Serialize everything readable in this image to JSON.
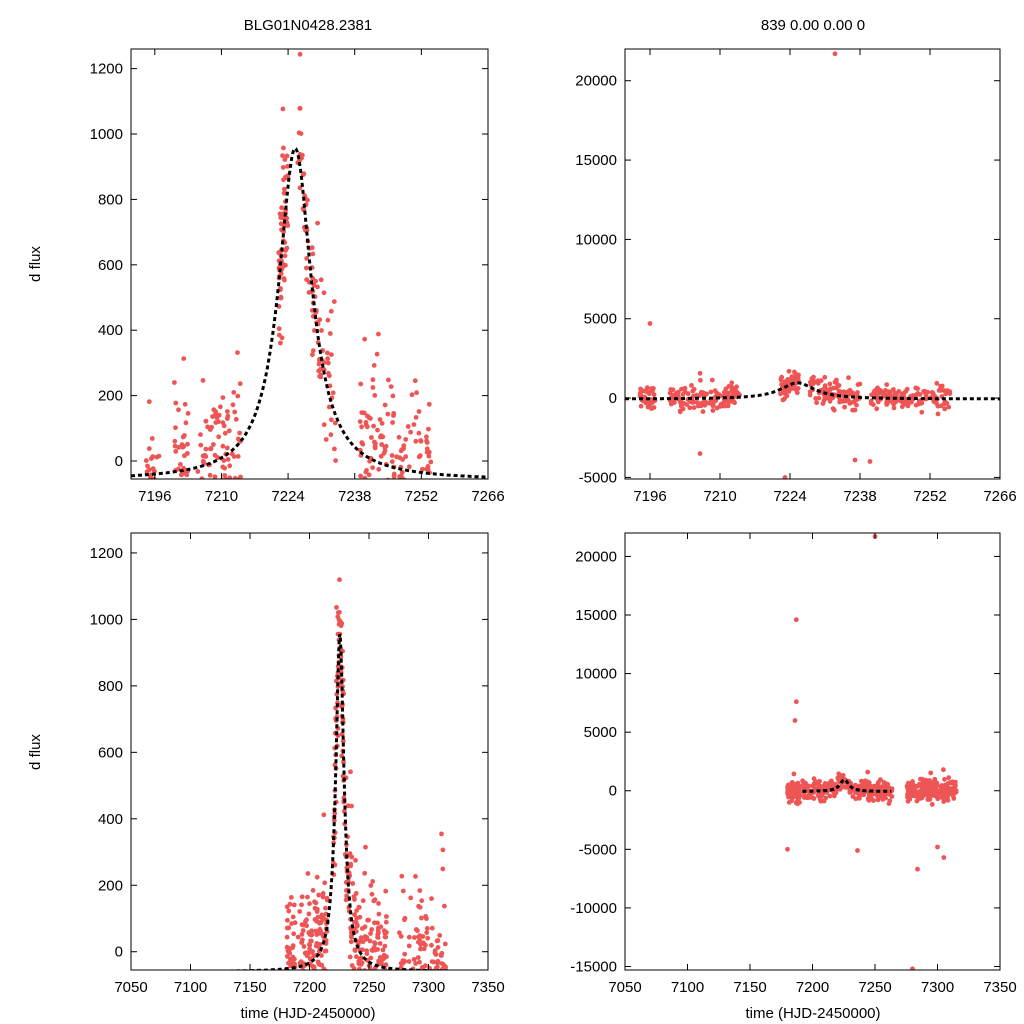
{
  "figure": {
    "title_left": "BLG01N0428.2381",
    "title_right": "839  0.00  0.00  0",
    "ylabel": "d flux",
    "xlabel": "time (HJD-2450000)"
  },
  "colors": {
    "points": "#ee5555",
    "model": "#000000",
    "frame": "#000000"
  },
  "chart_data": [
    {
      "id": "top-left",
      "type": "scatter",
      "xlim": [
        7191,
        7266
      ],
      "ylim": [
        -55,
        1260
      ],
      "xticks": [
        7196,
        7210,
        7224,
        7238,
        7252,
        7266
      ],
      "yticks": [
        0,
        200,
        400,
        600,
        800,
        1000,
        1200
      ],
      "model": {
        "t0": 7225.5,
        "peak": 956,
        "base": -60,
        "width": 4.2
      },
      "scatter": {
        "seed": 11,
        "noise": 140,
        "groups": [
          {
            "t": [
              7194,
              7197
            ],
            "n": 30
          },
          {
            "t": [
              7200,
              7203
            ],
            "n": 45
          },
          {
            "t": [
              7205,
              7208
            ],
            "n": 30
          },
          {
            "t": [
              7208,
              7214
            ],
            "n": 60
          },
          {
            "t": [
              7222,
              7224
            ],
            "n": 70
          },
          {
            "t": [
              7226,
              7234
            ],
            "n": 90
          },
          {
            "t": [
              7239,
              7245
            ],
            "n": 70
          },
          {
            "t": [
              7245,
              7254
            ],
            "n": 90
          }
        ]
      }
    },
    {
      "id": "top-right",
      "type": "scatter",
      "xlim": [
        7191,
        7266
      ],
      "ylim": [
        -5100,
        22000
      ],
      "xticks": [
        7196,
        7210,
        7224,
        7238,
        7252,
        7266
      ],
      "yticks": [
        -5000,
        0,
        5000,
        10000,
        15000,
        20000
      ],
      "model": {
        "t0": 7225.5,
        "peak": 956,
        "base": -60,
        "width": 4.2
      },
      "scatter": {
        "seed": 23,
        "noise": 500,
        "groups": [
          {
            "t": [
              7194,
              7197
            ],
            "n": 40
          },
          {
            "t": [
              7200,
              7214
            ],
            "n": 130
          },
          {
            "t": [
              7222,
              7226
            ],
            "n": 60
          },
          {
            "t": [
              7228,
              7238
            ],
            "n": 100
          },
          {
            "t": [
              7240,
              7256
            ],
            "n": 130
          }
        ]
      },
      "outliers": [
        [
          7196,
          4700
        ],
        [
          7233,
          21700
        ],
        [
          7206,
          -3500
        ],
        [
          7240,
          -4000
        ],
        [
          7237,
          -3900
        ],
        [
          7223,
          -5000
        ]
      ]
    },
    {
      "id": "bottom-left",
      "type": "scatter",
      "xlim": [
        7050,
        7350
      ],
      "ylim": [
        -55,
        1260
      ],
      "xticks": [
        7050,
        7100,
        7150,
        7200,
        7250,
        7300,
        7350
      ],
      "yticks": [
        0,
        200,
        400,
        600,
        800,
        1000,
        1200
      ],
      "model": {
        "t0": 7225.5,
        "peak": 956,
        "base": -60,
        "width": 4.2
      },
      "scatter": {
        "seed": 37,
        "noise": 140,
        "groups": [
          {
            "t": [
              7180,
              7188
            ],
            "n": 60
          },
          {
            "t": [
              7190,
              7215
            ],
            "n": 170
          },
          {
            "t": [
              7220,
              7232
            ],
            "n": 100
          },
          {
            "t": [
              7232,
              7265
            ],
            "n": 200
          },
          {
            "t": [
              7275,
              7315
            ],
            "n": 170
          }
        ]
      }
    },
    {
      "id": "bottom-right",
      "type": "scatter",
      "xlim": [
        7050,
        7350
      ],
      "ylim": [
        -15300,
        22000
      ],
      "xticks": [
        7050,
        7100,
        7150,
        7200,
        7250,
        7300,
        7350
      ],
      "yticks": [
        -15000,
        -10000,
        -5000,
        0,
        5000,
        10000,
        15000,
        20000
      ],
      "model": {
        "t0": 7225.5,
        "peak": 956,
        "base": -60,
        "width": 4.2,
        "range": [
          7192,
          7263
        ]
      },
      "scatter": {
        "seed": 51,
        "noise": 550,
        "groups": [
          {
            "t": [
              7180,
              7190
            ],
            "n": 100
          },
          {
            "t": [
              7192,
              7264
            ],
            "n": 260
          },
          {
            "t": [
              7275,
              7315
            ],
            "n": 230
          }
        ]
      },
      "outliers": [
        [
          7187,
          14600
        ],
        [
          7250,
          21700
        ],
        [
          7187,
          7600
        ],
        [
          7186,
          6000
        ],
        [
          7280,
          -15200
        ],
        [
          7284,
          -6700
        ],
        [
          7305,
          -5700
        ],
        [
          7180,
          -5000
        ],
        [
          7236,
          -5100
        ],
        [
          7300,
          -4800
        ]
      ]
    }
  ]
}
